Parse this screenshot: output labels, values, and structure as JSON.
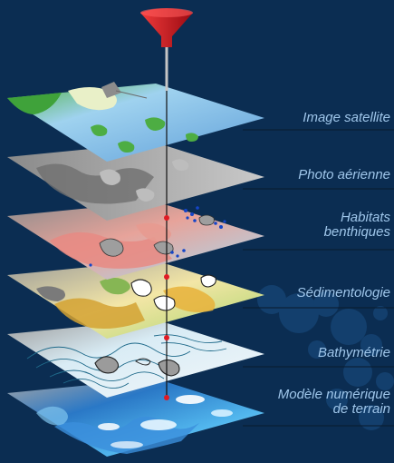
{
  "layers": [
    {
      "id": "satellite",
      "label_lines": [
        "Image satellite"
      ]
    },
    {
      "id": "aerial",
      "label_lines": [
        "Photo aérienne"
      ]
    },
    {
      "id": "habitats",
      "label_lines": [
        "Habitats",
        "benthiques"
      ]
    },
    {
      "id": "sediment",
      "label_lines": [
        "Sédimentologie"
      ]
    },
    {
      "id": "bathymetry",
      "label_lines": [
        "Bathymétrie"
      ]
    },
    {
      "id": "terrain",
      "label_lines": [
        "Modèle numérique",
        "de terrain"
      ]
    }
  ],
  "colors": {
    "background": "#0b2d52",
    "label_text": "#9fc6ea",
    "leader_line": "#0a1a2c",
    "pin_head": "#d2101e",
    "pin_needle": "#bdbdbd"
  },
  "icons": {
    "pin": "pushpin-icon"
  }
}
